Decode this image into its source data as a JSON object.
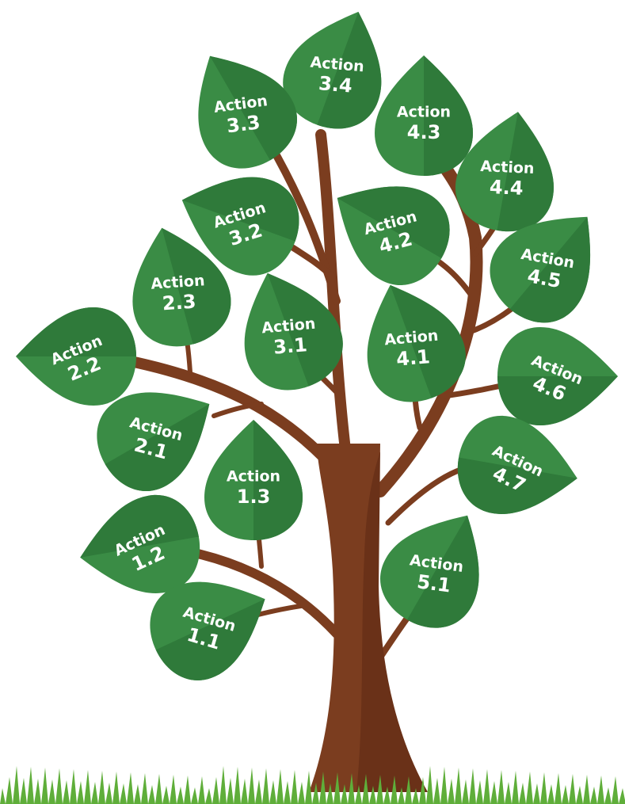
{
  "leaves": [
    {
      "label": "Action",
      "number": "3.4"
    },
    {
      "label": "Action",
      "number": "3.3"
    },
    {
      "label": "Action",
      "number": "4.3"
    },
    {
      "label": "Action",
      "number": "4.4"
    },
    {
      "label": "Action",
      "number": "3.2"
    },
    {
      "label": "Action",
      "number": "4.2"
    },
    {
      "label": "Action",
      "number": "4.5"
    },
    {
      "label": "Action",
      "number": "2.3"
    },
    {
      "label": "Action",
      "number": "3.1"
    },
    {
      "label": "Action",
      "number": "4.1"
    },
    {
      "label": "Action",
      "number": "2.2"
    },
    {
      "label": "Action",
      "number": "4.6"
    },
    {
      "label": "Action",
      "number": "2.1"
    },
    {
      "label": "Action",
      "number": "4.7"
    },
    {
      "label": "Action",
      "number": "1.3"
    },
    {
      "label": "Action",
      "number": "1.2"
    },
    {
      "label": "Action",
      "number": "5.1"
    },
    {
      "label": "Action",
      "number": "1.1"
    }
  ]
}
